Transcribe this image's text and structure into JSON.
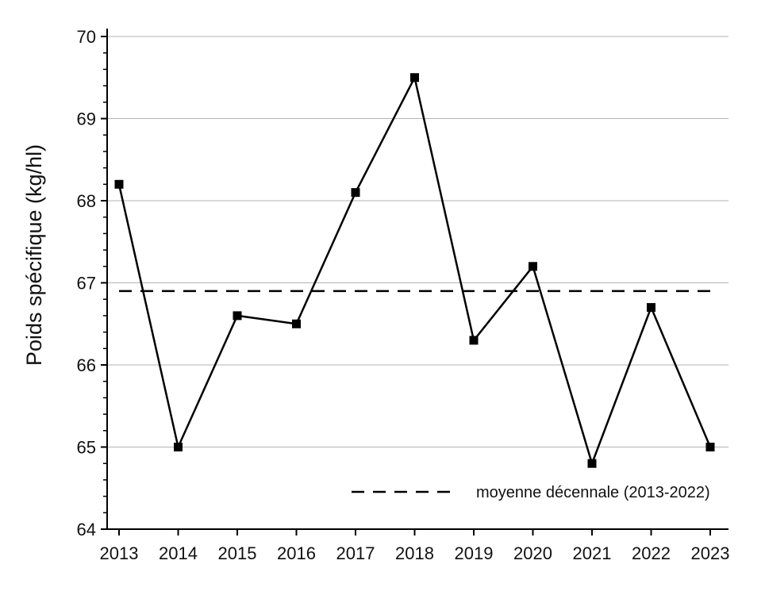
{
  "chart_data": {
    "type": "line",
    "title": "",
    "xlabel": "",
    "ylabel": "Poids spécifique (kg/hl)",
    "x": [
      2013,
      2014,
      2015,
      2016,
      2017,
      2018,
      2019,
      2020,
      2021,
      2022,
      2023
    ],
    "x_tick_labels": [
      "2013",
      "2014",
      "2015",
      "2016",
      "2017",
      "2018",
      "2019",
      "2020",
      "2021",
      "2022",
      "2023"
    ],
    "series": [
      {
        "values": [
          68.2,
          65.0,
          66.6,
          66.5,
          68.1,
          69.5,
          66.3,
          67.2,
          64.8,
          66.7,
          65.0
        ],
        "color": "#000000",
        "marker": "square"
      }
    ],
    "reference_line": {
      "label": "moyenne décennale (2013-2022)",
      "value": 66.9,
      "style": "dashed",
      "color": "#000000"
    },
    "ylim": [
      64,
      70
    ],
    "y_ticks": [
      64,
      65,
      66,
      67,
      68,
      69,
      70
    ],
    "y_tick_labels": [
      "64",
      "65",
      "66",
      "67",
      "68",
      "69",
      "70"
    ],
    "grid": "horizontal",
    "legend_position": "bottom-right"
  }
}
